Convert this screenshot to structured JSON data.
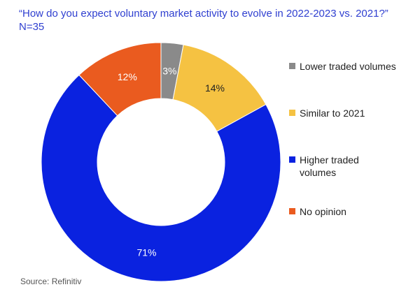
{
  "title": {
    "line1": "“How do you expect voluntary market activity to evolve in 2022-2023 vs. 2021?”",
    "line2": "N=35"
  },
  "source": "Source: Refinitiv",
  "chart_data": {
    "type": "pie",
    "variant": "donut",
    "categories": [
      "Lower traded volumes",
      "Similar to 2021",
      "Higher traded volumes",
      "No opinion"
    ],
    "values": [
      3,
      14,
      71,
      12
    ],
    "labels": [
      "3%",
      "14%",
      "71%",
      "12%"
    ],
    "colors": [
      "#8a8a8a",
      "#f5c242",
      "#0a22e0",
      "#ea5b1f"
    ],
    "label_colors": [
      "#ffffff",
      "#222222",
      "#ffffff",
      "#ffffff"
    ],
    "legend_placement": "right",
    "legend": [
      "Lower traded volumes",
      "Similar to 2021",
      "Higher traded\nvolumes",
      "No opinion"
    ]
  }
}
